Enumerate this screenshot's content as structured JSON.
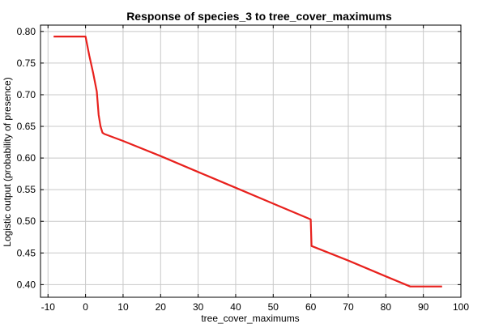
{
  "chart_data": {
    "type": "line",
    "title": "Response of species_3 to tree_cover_maximums",
    "xlabel": "tree_cover_maximums",
    "ylabel": "Logistic output (probability of presence)",
    "xlim": [
      -12,
      100
    ],
    "ylim": [
      0.38,
      0.81
    ],
    "x_ticks": [
      -10,
      0,
      10,
      20,
      30,
      40,
      50,
      60,
      70,
      80,
      90,
      100
    ],
    "y_ticks": [
      0.4,
      0.45,
      0.5,
      0.55,
      0.6,
      0.65,
      0.7,
      0.75,
      0.8
    ],
    "x_tick_labels": [
      "-10",
      "0",
      "10",
      "20",
      "30",
      "40",
      "50",
      "60",
      "70",
      "80",
      "90",
      "100"
    ],
    "y_tick_labels": [
      "0.40",
      "0.45",
      "0.50",
      "0.55",
      "0.60",
      "0.65",
      "0.70",
      "0.75",
      "0.80"
    ],
    "grid": true,
    "line_color": "#e8211d",
    "series": [
      {
        "x": [
          -8.5,
          0.0,
          1.0,
          2.0,
          3.0,
          3.5,
          4.0,
          4.5,
          5.0,
          10.0,
          20.0,
          30.0,
          40.0,
          50.0,
          60.0,
          60.2,
          70.0,
          80.0,
          86.5,
          95.0
        ],
        "y": [
          0.792,
          0.792,
          0.762,
          0.735,
          0.705,
          0.668,
          0.65,
          0.64,
          0.638,
          0.627,
          0.603,
          0.578,
          0.553,
          0.528,
          0.503,
          0.461,
          0.438,
          0.413,
          0.397,
          0.397
        ]
      }
    ]
  }
}
